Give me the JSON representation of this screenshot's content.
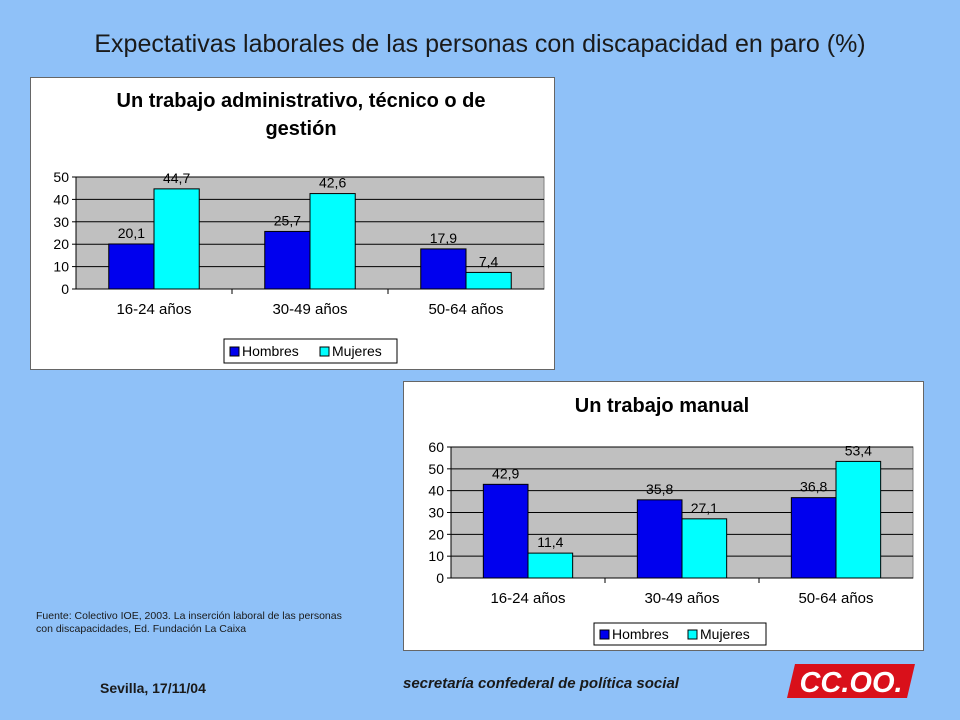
{
  "slide": {
    "title": "Expectativas laborales de las personas con discapacidad en paro (%)",
    "source_note": "Fuente: Colectivo IOE, 2003. La inserción laboral de las personas con discapacidades, Ed. Fundación La Caixa",
    "footer_date": "Sevilla, 17/11/04",
    "footer_org": "secretaría confederal de política social",
    "logo_text": "CC.OO."
  },
  "colors": {
    "background": "#8fc1f8",
    "plot_area": "#c0c0c0",
    "hombres": "#0000ee",
    "mujeres": "#00ffff"
  },
  "chart_data": [
    {
      "type": "bar",
      "title_lines": [
        "Un trabajo administrativo, técnico o de",
        "gestión"
      ],
      "categories": [
        "16-24 años",
        "30-49 años",
        "50-64 años"
      ],
      "series": [
        {
          "name": "Hombres",
          "values": [
            20.1,
            25.7,
            17.9
          ],
          "labels": [
            "20,1",
            "25,7",
            "17,9"
          ]
        },
        {
          "name": "Mujeres",
          "values": [
            44.7,
            42.6,
            7.4
          ],
          "labels": [
            "44,7",
            "42,6",
            "7,4"
          ]
        }
      ],
      "ylim": [
        0,
        50
      ],
      "yticks": [
        0,
        10,
        20,
        30,
        40,
        50
      ],
      "grid": true,
      "legend": "bottom"
    },
    {
      "type": "bar",
      "title_lines": [
        "Un trabajo manual"
      ],
      "categories": [
        "16-24 años",
        "30-49 años",
        "50-64 años"
      ],
      "series": [
        {
          "name": "Hombres",
          "values": [
            42.9,
            35.8,
            36.8
          ],
          "labels": [
            "42,9",
            "35,8",
            "36,8"
          ]
        },
        {
          "name": "Mujeres",
          "values": [
            11.4,
            27.1,
            53.4
          ],
          "labels": [
            "11,4",
            "27,1",
            "53,4"
          ]
        }
      ],
      "ylim": [
        0,
        60
      ],
      "yticks": [
        0,
        10,
        20,
        30,
        40,
        50,
        60
      ],
      "grid": true,
      "legend": "bottom"
    }
  ]
}
